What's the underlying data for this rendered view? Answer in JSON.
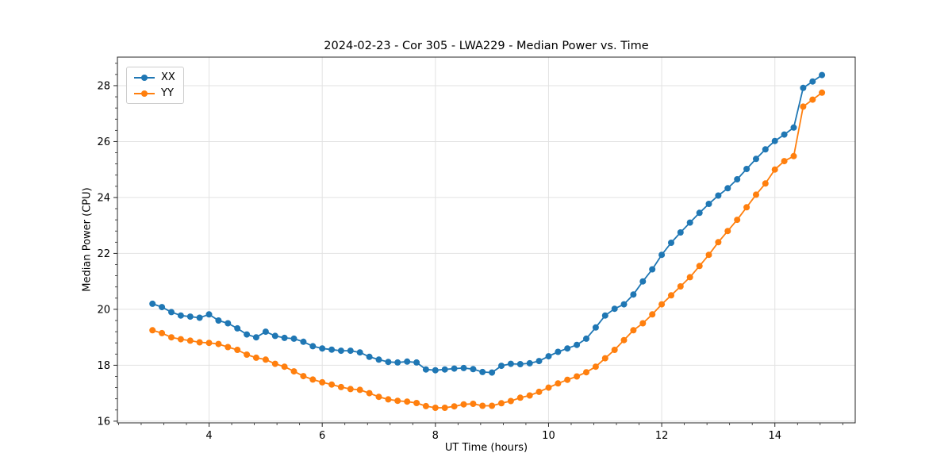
{
  "chart_data": {
    "type": "line",
    "title": "2024-02-23 - Cor 305 - LWA229 - Median Power vs. Time",
    "xlabel": "UT Time (hours)",
    "ylabel": "Median Power (CPU)",
    "xlim": [
      2.38,
      15.42
    ],
    "ylim": [
      15.94,
      29.02
    ],
    "xticks": [
      4,
      6,
      8,
      10,
      12,
      14
    ],
    "yticks": [
      16,
      18,
      20,
      22,
      24,
      26,
      28
    ],
    "minor_tick_step_x": 0.4,
    "minor_tick_step_y": 0.4,
    "grid": true,
    "legend_position": "upper left",
    "x": [
      3.0,
      3.167,
      3.333,
      3.5,
      3.667,
      3.833,
      4.0,
      4.167,
      4.333,
      4.5,
      4.667,
      4.833,
      5.0,
      5.167,
      5.333,
      5.5,
      5.667,
      5.833,
      6.0,
      6.167,
      6.333,
      6.5,
      6.667,
      6.833,
      7.0,
      7.167,
      7.333,
      7.5,
      7.667,
      7.833,
      8.0,
      8.167,
      8.333,
      8.5,
      8.667,
      8.833,
      9.0,
      9.167,
      9.333,
      9.5,
      9.667,
      9.833,
      10.0,
      10.167,
      10.333,
      10.5,
      10.667,
      10.833,
      11.0,
      11.167,
      11.333,
      11.5,
      11.667,
      11.833,
      12.0,
      12.167,
      12.333,
      12.5,
      12.667,
      12.833,
      13.0,
      13.167,
      13.333,
      13.5,
      13.667,
      13.833,
      14.0,
      14.167,
      14.333,
      14.5,
      14.667,
      14.833
    ],
    "series": [
      {
        "name": "XX",
        "color": "#1f77b4",
        "values": [
          20.2,
          20.08,
          19.9,
          19.78,
          19.74,
          19.7,
          19.82,
          19.6,
          19.5,
          19.32,
          19.1,
          19.0,
          19.2,
          19.05,
          18.98,
          18.95,
          18.84,
          18.68,
          18.6,
          18.56,
          18.52,
          18.52,
          18.46,
          18.3,
          18.2,
          18.12,
          18.1,
          18.13,
          18.1,
          17.85,
          17.82,
          17.85,
          17.88,
          17.9,
          17.86,
          17.76,
          17.74,
          17.98,
          18.05,
          18.04,
          18.07,
          18.15,
          18.32,
          18.48,
          18.6,
          18.73,
          18.95,
          19.35,
          19.78,
          20.02,
          20.18,
          20.53,
          21.0,
          21.43,
          21.95,
          22.38,
          22.75,
          23.1,
          23.45,
          23.77,
          24.07,
          24.33,
          24.65,
          25.02,
          25.38,
          25.72,
          26.02,
          26.25,
          26.5,
          27.92,
          28.15,
          28.38
        ]
      },
      {
        "name": "YY",
        "color": "#ff7f0e",
        "values": [
          19.25,
          19.15,
          19.0,
          18.93,
          18.88,
          18.82,
          18.8,
          18.76,
          18.65,
          18.55,
          18.38,
          18.27,
          18.2,
          18.05,
          17.95,
          17.78,
          17.61,
          17.49,
          17.39,
          17.31,
          17.22,
          17.15,
          17.12,
          17.0,
          16.87,
          16.78,
          16.73,
          16.7,
          16.65,
          16.54,
          16.48,
          16.48,
          16.53,
          16.6,
          16.62,
          16.55,
          16.55,
          16.64,
          16.72,
          16.84,
          16.92,
          17.05,
          17.2,
          17.35,
          17.48,
          17.6,
          17.75,
          17.95,
          18.25,
          18.55,
          18.9,
          19.25,
          19.5,
          19.82,
          20.18,
          20.5,
          20.82,
          21.15,
          21.55,
          21.95,
          22.4,
          22.8,
          23.2,
          23.65,
          24.1,
          24.5,
          25.0,
          25.3,
          25.48,
          27.25,
          27.5,
          27.75
        ]
      }
    ]
  }
}
